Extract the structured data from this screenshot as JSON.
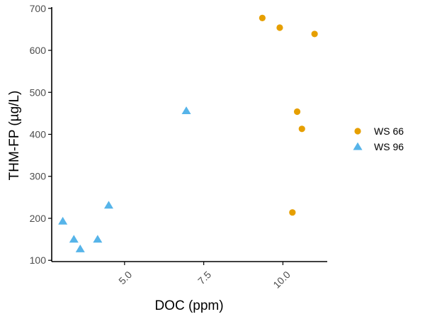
{
  "chart_data": {
    "type": "scatter",
    "title": "",
    "xlabel": "DOC (ppm)",
    "ylabel": "THM-FP (µg/L)",
    "xlim": [
      2.7,
      11.4
    ],
    "ylim": [
      97,
      703
    ],
    "x_ticks": [
      5.0,
      7.5,
      10.0
    ],
    "x_tick_labels": [
      "5.0",
      "7.5",
      "10.0"
    ],
    "y_ticks": [
      100,
      200,
      300,
      400,
      500,
      600,
      700
    ],
    "y_tick_labels": [
      "100",
      "200",
      "300",
      "400",
      "500",
      "600",
      "700"
    ],
    "grid": false,
    "legend_position": "right",
    "series": [
      {
        "name": "WS 66",
        "marker": "circle",
        "color": "#E69F00",
        "points": [
          {
            "x": 9.35,
            "y": 677
          },
          {
            "x": 9.9,
            "y": 654
          },
          {
            "x": 11.0,
            "y": 639
          },
          {
            "x": 10.45,
            "y": 454
          },
          {
            "x": 10.6,
            "y": 413
          },
          {
            "x": 10.3,
            "y": 214
          }
        ]
      },
      {
        "name": "WS 96",
        "marker": "triangle",
        "color": "#56B4E9",
        "points": [
          {
            "x": 6.95,
            "y": 456
          },
          {
            "x": 4.5,
            "y": 231
          },
          {
            "x": 3.05,
            "y": 193
          },
          {
            "x": 3.4,
            "y": 150
          },
          {
            "x": 4.15,
            "y": 150
          },
          {
            "x": 3.6,
            "y": 127
          }
        ]
      }
    ]
  }
}
